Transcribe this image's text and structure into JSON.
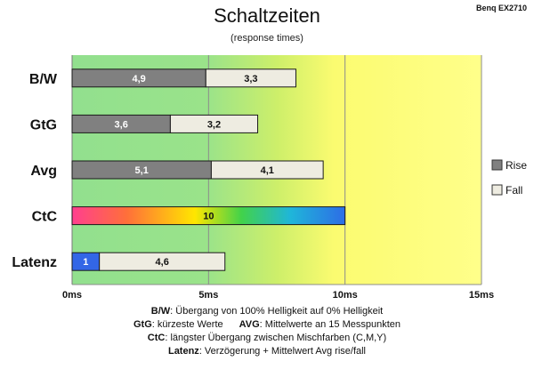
{
  "chart_data": {
    "type": "bar",
    "stacked": true,
    "orientation": "horizontal",
    "title": "Schaltzeiten",
    "subtitle": "(response times)",
    "brand": "Benq EX2710",
    "categories": [
      "B/W",
      "GtG",
      "Avg",
      "CtC",
      "Latenz"
    ],
    "series": [
      {
        "name": "Rise",
        "values": [
          4.9,
          3.6,
          5.1,
          10,
          1
        ],
        "value_labels": [
          "4,9",
          "3,6",
          "5,1",
          "10",
          "1"
        ],
        "color": "#808080"
      },
      {
        "name": "Fall",
        "values": [
          3.3,
          3.2,
          4.1,
          null,
          4.6
        ],
        "value_labels": [
          "3,3",
          "3,2",
          "4,1",
          "",
          "4,6"
        ],
        "color": "#eeece1"
      }
    ],
    "special_colors": {
      "CtC": "rainbow",
      "Latenz_first": "#3366e6"
    },
    "xlim": [
      0,
      15
    ],
    "xticks": [
      0,
      5,
      10,
      15
    ],
    "xtick_labels": [
      "0ms",
      "5ms",
      "10ms",
      "15ms"
    ],
    "background_zones": {
      "green": "#8fde8f",
      "yellow": "#ffff88"
    },
    "legend_position": "right"
  },
  "footnotes": [
    {
      "key": "B/W",
      "text": ":  Übergang von 100% Helligkeit auf 0% Helligkeit"
    },
    {
      "key": "GtG",
      "text": ": kürzeste  Werte",
      "key2": "AVG",
      "text2": ": Mittelwerte an 15 Messpunkten"
    },
    {
      "key": "CtC",
      "text": ": längster Übergang  zwischen Mischfarben (C,M,Y)"
    },
    {
      "key": "Latenz",
      "text": ": Verzögerung  + Mittelwert  Avg rise/fall"
    }
  ]
}
